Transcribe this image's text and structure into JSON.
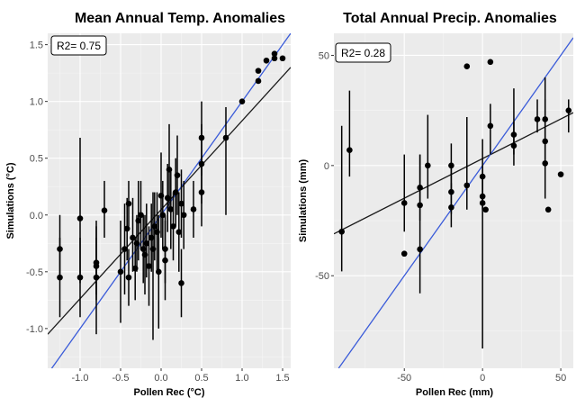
{
  "charts": [
    {
      "type": "scatter",
      "title": "Mean Annual Temp. Anomalies",
      "xlabel": "Pollen Rec (°C)",
      "ylabel": "Simulations (°C)",
      "annotation": "R2= 0.75",
      "xlim": [
        -1.4,
        1.6
      ],
      "ylim": [
        -1.35,
        1.6
      ],
      "xticks": [
        -1.0,
        -0.5,
        0.0,
        0.5,
        1.0,
        1.5
      ],
      "xtick_labels": [
        "-1.0",
        "-0.5",
        "0.0",
        "0.5",
        "1.0",
        "1.5"
      ],
      "yticks": [
        -1.0,
        -0.5,
        0.0,
        0.5,
        1.0,
        1.5
      ],
      "ytick_labels": [
        "-1.0",
        "-0.5",
        "0.0",
        "0.5",
        "1.0",
        "1.5"
      ],
      "grid": true,
      "background": "#ebebeb",
      "point_color": "#000000",
      "one_to_one_color": "#3a5bd9",
      "regression_color": "#1a1a1a",
      "one_to_one_line": [
        [
          -1.4,
          -1.4
        ],
        [
          1.6,
          1.6
        ]
      ],
      "regression_line": [
        [
          -1.4,
          -1.05
        ],
        [
          1.6,
          1.3
        ]
      ],
      "points": [
        {
          "x": -1.25,
          "y": -0.3,
          "lo": -0.55,
          "hi": 0.0
        },
        {
          "x": -1.25,
          "y": -0.55,
          "lo": -0.9,
          "hi": -0.2
        },
        {
          "x": -1.0,
          "y": -0.03,
          "lo": -0.6,
          "hi": 0.68
        },
        {
          "x": -1.0,
          "y": -0.55,
          "lo": -0.9,
          "hi": -0.2
        },
        {
          "x": -0.8,
          "y": -0.42,
          "lo": -0.75,
          "hi": -0.1
        },
        {
          "x": -0.8,
          "y": -0.45,
          "lo": -0.7,
          "hi": -0.2
        },
        {
          "x": -0.8,
          "y": -0.55,
          "lo": -1.05,
          "hi": -0.05
        },
        {
          "x": -0.7,
          "y": 0.04,
          "lo": -0.2,
          "hi": 0.3
        },
        {
          "x": -0.5,
          "y": -0.5,
          "lo": -0.95,
          "hi": -0.05
        },
        {
          "x": -0.45,
          "y": -0.3,
          "lo": -0.7,
          "hi": 0.1
        },
        {
          "x": -0.42,
          "y": -0.12,
          "lo": -0.4,
          "hi": 0.15
        },
        {
          "x": -0.4,
          "y": -0.55,
          "lo": -0.8,
          "hi": -0.3
        },
        {
          "x": -0.4,
          "y": 0.1,
          "lo": -0.1,
          "hi": 0.3
        },
        {
          "x": -0.35,
          "y": -0.2,
          "lo": -0.5,
          "hi": 0.15
        },
        {
          "x": -0.32,
          "y": -0.47,
          "lo": -0.75,
          "hi": -0.2
        },
        {
          "x": -0.3,
          "y": -0.25,
          "lo": -0.5,
          "hi": 0.0
        },
        {
          "x": -0.28,
          "y": -0.05,
          "lo": -0.4,
          "hi": 0.3
        },
        {
          "x": -0.25,
          "y": 0.0,
          "lo": -0.3,
          "hi": 0.3
        },
        {
          "x": -0.22,
          "y": -0.3,
          "lo": -0.6,
          "hi": 0.0
        },
        {
          "x": -0.2,
          "y": -0.35,
          "lo": -0.7,
          "hi": 0.0
        },
        {
          "x": -0.18,
          "y": -0.25,
          "lo": -0.55,
          "hi": 0.1
        },
        {
          "x": -0.15,
          "y": -0.45,
          "lo": -0.8,
          "hi": -0.1
        },
        {
          "x": -0.12,
          "y": -0.2,
          "lo": -0.5,
          "hi": 0.1
        },
        {
          "x": -0.1,
          "y": -0.3,
          "lo": -1.1,
          "hi": 0.2
        },
        {
          "x": -0.08,
          "y": -0.1,
          "lo": -0.4,
          "hi": 0.2
        },
        {
          "x": -0.05,
          "y": -0.15,
          "lo": -0.5,
          "hi": 0.2
        },
        {
          "x": -0.03,
          "y": -0.5,
          "lo": -1.0,
          "hi": 0.0
        },
        {
          "x": 0.0,
          "y": 0.17,
          "lo": -0.2,
          "hi": 0.55
        },
        {
          "x": 0.02,
          "y": 0.0,
          "lo": -0.3,
          "hi": 0.3
        },
        {
          "x": 0.05,
          "y": -0.3,
          "lo": -0.6,
          "hi": 0.0
        },
        {
          "x": 0.05,
          "y": -0.4,
          "lo": -0.75,
          "hi": -0.05
        },
        {
          "x": 0.08,
          "y": 0.15,
          "lo": -0.15,
          "hi": 0.45
        },
        {
          "x": 0.1,
          "y": 0.4,
          "lo": 0.05,
          "hi": 0.8
        },
        {
          "x": 0.12,
          "y": 0.05,
          "lo": -0.3,
          "hi": 0.4
        },
        {
          "x": 0.15,
          "y": -0.1,
          "lo": -0.4,
          "hi": 0.2
        },
        {
          "x": 0.18,
          "y": 0.2,
          "lo": -0.1,
          "hi": 0.5
        },
        {
          "x": 0.2,
          "y": 0.35,
          "lo": 0.0,
          "hi": 0.7
        },
        {
          "x": 0.22,
          "y": -0.15,
          "lo": -0.5,
          "hi": 0.2
        },
        {
          "x": 0.25,
          "y": -0.6,
          "lo": -0.9,
          "hi": -0.3
        },
        {
          "x": 0.25,
          "y": 0.1,
          "lo": -0.2,
          "hi": 0.4
        },
        {
          "x": 0.28,
          "y": 0.0,
          "lo": -0.3,
          "hi": 0.3
        },
        {
          "x": 0.4,
          "y": 0.05,
          "lo": -0.2,
          "hi": 0.3
        },
        {
          "x": 0.5,
          "y": 0.45,
          "lo": 0.1,
          "hi": 0.8
        },
        {
          "x": 0.5,
          "y": 0.68,
          "lo": 0.35,
          "hi": 1.0
        },
        {
          "x": 0.5,
          "y": 0.2,
          "lo": -0.1,
          "hi": 0.5
        },
        {
          "x": 0.8,
          "y": 0.68,
          "lo": 0.0,
          "hi": 0.95
        },
        {
          "x": 1.0,
          "y": 1.0,
          "lo": 1.0,
          "hi": 1.0
        },
        {
          "x": 1.2,
          "y": 1.18,
          "lo": 1.18,
          "hi": 1.18
        },
        {
          "x": 1.2,
          "y": 1.27,
          "lo": 1.27,
          "hi": 1.27
        },
        {
          "x": 1.3,
          "y": 1.36,
          "lo": 1.36,
          "hi": 1.36
        },
        {
          "x": 1.4,
          "y": 1.38,
          "lo": 1.38,
          "hi": 1.38
        },
        {
          "x": 1.4,
          "y": 1.42,
          "lo": 1.42,
          "hi": 1.42
        },
        {
          "x": 1.5,
          "y": 1.38,
          "lo": 1.38,
          "hi": 1.38
        }
      ]
    },
    {
      "type": "scatter",
      "title": "Total Annual Precip. Anomalies",
      "xlabel": "Pollen Rec (mm)",
      "ylabel": "Simulations (mm)",
      "annotation": "R2= 0.28",
      "xlim": [
        -95,
        58
      ],
      "ylim": [
        -92,
        60
      ],
      "xticks": [
        -50,
        0,
        50
      ],
      "xtick_labels": [
        "-50",
        "0",
        "50"
      ],
      "yticks": [
        -50,
        0,
        50
      ],
      "ytick_labels": [
        "-50",
        "0",
        "50"
      ],
      "grid": true,
      "background": "#ebebeb",
      "point_color": "#000000",
      "one_to_one_color": "#3a5bd9",
      "regression_color": "#1a1a1a",
      "one_to_one_line": [
        [
          -92,
          -92
        ],
        [
          58,
          58
        ]
      ],
      "regression_line": [
        [
          -95,
          -31
        ],
        [
          58,
          24
        ]
      ],
      "points": [
        {
          "x": -90,
          "y": -30,
          "lo": -48,
          "hi": 18
        },
        {
          "x": -85,
          "y": 7,
          "lo": -5,
          "hi": 34
        },
        {
          "x": -50,
          "y": -17,
          "lo": -30,
          "hi": 5
        },
        {
          "x": -50,
          "y": -40,
          "lo": -40,
          "hi": -40
        },
        {
          "x": -40,
          "y": -10,
          "lo": -25,
          "hi": 5
        },
        {
          "x": -40,
          "y": -18,
          "lo": -58,
          "hi": 5
        },
        {
          "x": -40,
          "y": -38,
          "lo": -38,
          "hi": -38
        },
        {
          "x": -35,
          "y": 0,
          "lo": -15,
          "hi": 23
        },
        {
          "x": -20,
          "y": 0,
          "lo": -12,
          "hi": 10
        },
        {
          "x": -20,
          "y": -12,
          "lo": -22,
          "hi": 0
        },
        {
          "x": -20,
          "y": -19,
          "lo": -28,
          "hi": -8
        },
        {
          "x": -10,
          "y": 45,
          "lo": 45,
          "hi": 45
        },
        {
          "x": -10,
          "y": -9,
          "lo": -20,
          "hi": 22
        },
        {
          "x": 0,
          "y": -5,
          "lo": -83,
          "hi": 12
        },
        {
          "x": 0,
          "y": -14,
          "lo": -20,
          "hi": 0
        },
        {
          "x": 0,
          "y": -17,
          "lo": -20,
          "hi": -5
        },
        {
          "x": 2,
          "y": -20,
          "lo": -20,
          "hi": -20
        },
        {
          "x": 5,
          "y": 47,
          "lo": 47,
          "hi": 47
        },
        {
          "x": 5,
          "y": 18,
          "lo": 5,
          "hi": 28
        },
        {
          "x": 20,
          "y": 14,
          "lo": 5,
          "hi": 35
        },
        {
          "x": 20,
          "y": 9,
          "lo": 0,
          "hi": 20
        },
        {
          "x": 35,
          "y": 21,
          "lo": 15,
          "hi": 30
        },
        {
          "x": 40,
          "y": 21,
          "lo": 0,
          "hi": 40
        },
        {
          "x": 40,
          "y": 11,
          "lo": 0,
          "hi": 30
        },
        {
          "x": 40,
          "y": 1,
          "lo": -15,
          "hi": 20
        },
        {
          "x": 42,
          "y": -20,
          "lo": -20,
          "hi": -20
        },
        {
          "x": 50,
          "y": -4,
          "lo": -4,
          "hi": -4
        },
        {
          "x": 55,
          "y": 25,
          "lo": 15,
          "hi": 30
        }
      ]
    }
  ]
}
